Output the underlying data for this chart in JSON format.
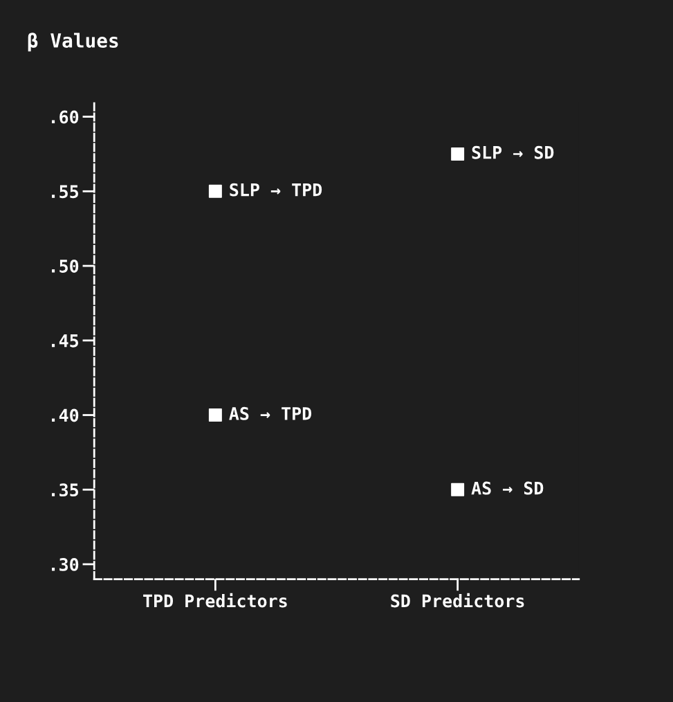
{
  "chart_data": {
    "type": "scatter",
    "ylabel": "β Values",
    "categories": [
      "TPD Predictors",
      "SD Predictors"
    ],
    "series": [
      {
        "name": "AS → TPD",
        "color": "#ffffff",
        "x": [
          "TPD Predictors"
        ],
        "values": [
          0.4
        ]
      },
      {
        "name": "SLP → TPD",
        "color": "#ffffff",
        "x": [
          "TPD Predictors"
        ],
        "values": [
          0.55
        ]
      },
      {
        "name": "SLP → SD",
        "color": "#ffffff",
        "x": [
          "SD Predictors"
        ],
        "values": [
          0.575
        ]
      },
      {
        "name": "AS → SD",
        "color": "#ffffff",
        "x": [
          "SD Predictors"
        ],
        "values": [
          0.35
        ]
      }
    ],
    "ylim": [
      0.29,
      0.61
    ],
    "yticks": [
      {
        "value": 0.3,
        "label": ".30"
      },
      {
        "value": 0.35,
        "label": ".35"
      },
      {
        "value": 0.4,
        "label": ".40"
      },
      {
        "value": 0.45,
        "label": ".45"
      },
      {
        "value": 0.5,
        "label": ".50"
      },
      {
        "value": 0.55,
        "label": ".55"
      },
      {
        "value": 0.6,
        "label": ".60"
      }
    ],
    "marker": "square",
    "line_style": "dashed",
    "grid": false,
    "legend": false
  }
}
